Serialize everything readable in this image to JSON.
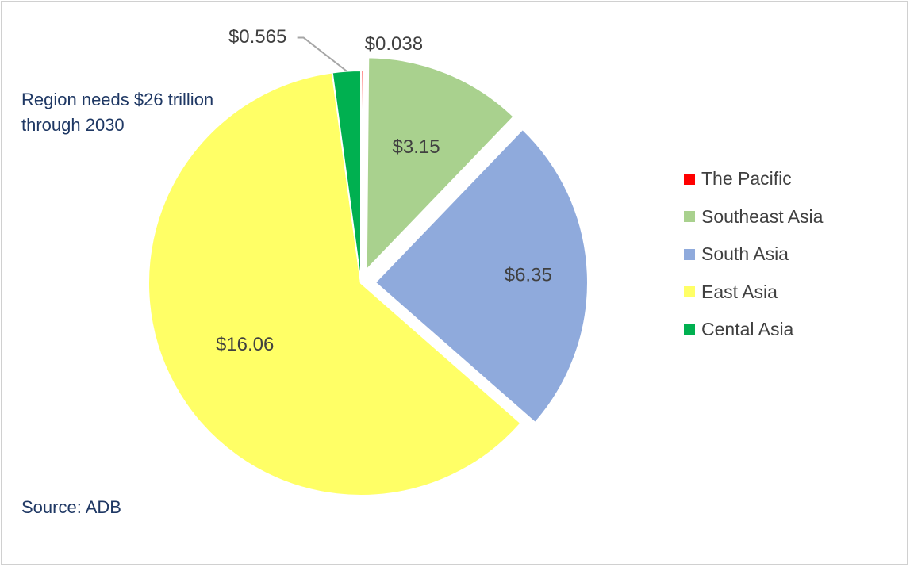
{
  "chart_data": {
    "type": "pie",
    "title": "",
    "units": "$ trillion",
    "slices": [
      {
        "name": "The Pacific",
        "value": 0.038,
        "label": "$0.038",
        "color": "#ff0000"
      },
      {
        "name": "Southeast Asia",
        "value": 3.15,
        "label": "$3.15",
        "color": "#a9d18e"
      },
      {
        "name": "South Asia",
        "value": 6.35,
        "label": "$6.35",
        "color": "#8faadc"
      },
      {
        "name": "East Asia",
        "value": 16.06,
        "label": "$16.06",
        "color": "#ffff66"
      },
      {
        "name": "Cental Asia",
        "value": 0.565,
        "label": "$0.565",
        "color": "#00b050"
      }
    ],
    "legend_position": "right",
    "exploded_slices": [
      "Southeast Asia",
      "South Asia"
    ],
    "annotations": [
      "Region needs $26 trillion through 2030",
      "Source: ADB"
    ]
  },
  "notes": {
    "main": "Region needs $26 trillion through 2030",
    "source": "Source: ADB"
  }
}
